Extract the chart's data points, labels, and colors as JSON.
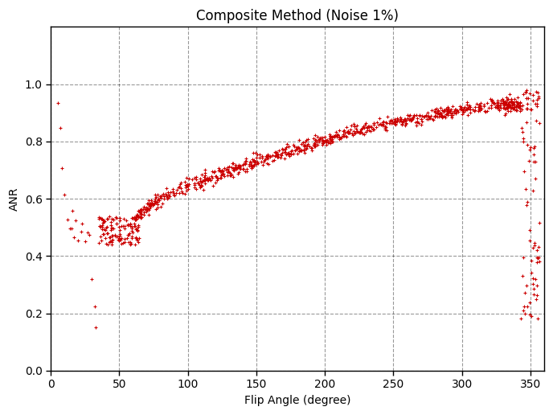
{
  "title": "Composite Method (Noise 1%)",
  "xlabel": "Flip Angle (degree)",
  "ylabel": "ANR",
  "xlim": [
    0,
    360
  ],
  "ylim": [
    0,
    1.2
  ],
  "xticks": [
    0,
    50,
    100,
    150,
    200,
    250,
    300,
    350
  ],
  "yticks": [
    0,
    0.2,
    0.4,
    0.6,
    0.8,
    1.0
  ],
  "marker_color": "#cc0000",
  "marker": "+",
  "markersize": 3,
  "marker_linewidth": 0.8,
  "grid_linestyle": "--",
  "grid_color": "#000000",
  "grid_alpha": 0.4,
  "grid_linewidth": 0.8,
  "background_color": "#ffffff",
  "title_fontsize": 12,
  "label_fontsize": 10,
  "tick_fontsize": 10,
  "seed": 42,
  "noise_std": 0.005
}
